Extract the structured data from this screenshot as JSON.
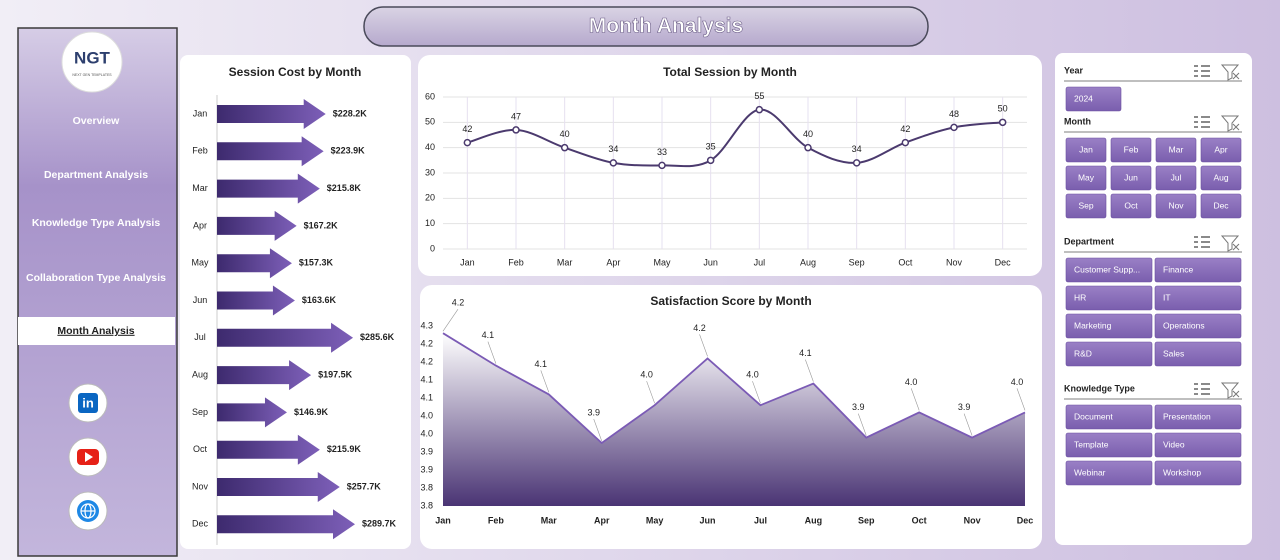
{
  "header": {
    "title": "Month Analysis"
  },
  "logo": {
    "mark": "NGT",
    "tagline": "NEXT GEN TEMPLATES"
  },
  "nav": [
    "Overview",
    "Department Analysis",
    "Knowledge Type Analysis",
    "Collaboration Type Analysis",
    "Month Analysis"
  ],
  "slicers": [
    {
      "title": "Year",
      "items": [
        "2024"
      ]
    },
    {
      "title": "Month",
      "items": [
        "Jan",
        "Feb",
        "Mar",
        "Apr",
        "May",
        "Jun",
        "Jul",
        "Aug",
        "Sep",
        "Oct",
        "Nov",
        "Dec"
      ]
    },
    {
      "title": "Department",
      "items": [
        "Customer Supp...",
        "Finance",
        "HR",
        "IT",
        "Marketing",
        "Operations",
        "R&D",
        "Sales"
      ]
    },
    {
      "title": "Knowledge Type",
      "items": [
        "Document",
        "Presentation",
        "Template",
        "Video",
        "Webinar",
        "Workshop"
      ]
    }
  ],
  "chart_data": [
    {
      "type": "bar",
      "orientation": "horizontal",
      "title": "Session Cost by Month",
      "color": "#5a3f93",
      "categories": [
        "Jan",
        "Feb",
        "Mar",
        "Apr",
        "May",
        "Jun",
        "Jul",
        "Aug",
        "Sep",
        "Oct",
        "Nov",
        "Dec"
      ],
      "values": [
        228200,
        223900,
        215800,
        167200,
        157300,
        163600,
        285600,
        197500,
        146900,
        215900,
        257700,
        289700
      ],
      "value_labels": [
        "$228.2K",
        "$223.9K",
        "$215.8K",
        "$167.2K",
        "$157.3K",
        "$163.6K",
        "$285.6K",
        "$197.5K",
        "$146.9K",
        "$215.9K",
        "$257.7K",
        "$289.7K"
      ]
    },
    {
      "type": "line",
      "title": "Total Session by Month",
      "color": "#4b3a6e",
      "grid": true,
      "categories": [
        "Jan",
        "Feb",
        "Mar",
        "Apr",
        "May",
        "Jun",
        "Jul",
        "Aug",
        "Sep",
        "Oct",
        "Nov",
        "Dec"
      ],
      "values": [
        42,
        47,
        40,
        34,
        33,
        35,
        55,
        40,
        34,
        42,
        48,
        50
      ],
      "ylim": [
        0,
        60
      ],
      "yticks": [
        0,
        10,
        20,
        30,
        40,
        50,
        60
      ]
    },
    {
      "type": "area",
      "title": "Satisfaction Score by Month",
      "color": "#7b5bb5",
      "grid": false,
      "categories": [
        "Jan",
        "Feb",
        "Mar",
        "Apr",
        "May",
        "Jun",
        "Jul",
        "Aug",
        "Sep",
        "Oct",
        "Nov",
        "Dec"
      ],
      "values": [
        4.23,
        4.14,
        4.06,
        3.925,
        4.03,
        4.16,
        4.03,
        4.09,
        3.94,
        4.01,
        3.94,
        4.01
      ],
      "value_labels": [
        "4.2",
        "4.1",
        "4.1",
        "3.9",
        "4.0",
        "4.2",
        "4.0",
        "4.1",
        "3.9",
        "4.0",
        "3.9",
        "4.0"
      ],
      "ylim": [
        3.75,
        4.25
      ],
      "yticks": [
        {
          "value": 3.75,
          "label": "3.8"
        },
        {
          "value": 3.8,
          "label": "3.8"
        },
        {
          "value": 3.85,
          "label": "3.9"
        },
        {
          "value": 3.9,
          "label": "3.9"
        },
        {
          "value": 3.95,
          "label": "4.0"
        },
        {
          "value": 4.0,
          "label": "4.0"
        },
        {
          "value": 4.05,
          "label": "4.1"
        },
        {
          "value": 4.1,
          "label": "4.1"
        },
        {
          "value": 4.15,
          "label": "4.2"
        },
        {
          "value": 4.2,
          "label": "4.2"
        },
        {
          "value": 4.25,
          "label": "4.3"
        }
      ]
    }
  ]
}
